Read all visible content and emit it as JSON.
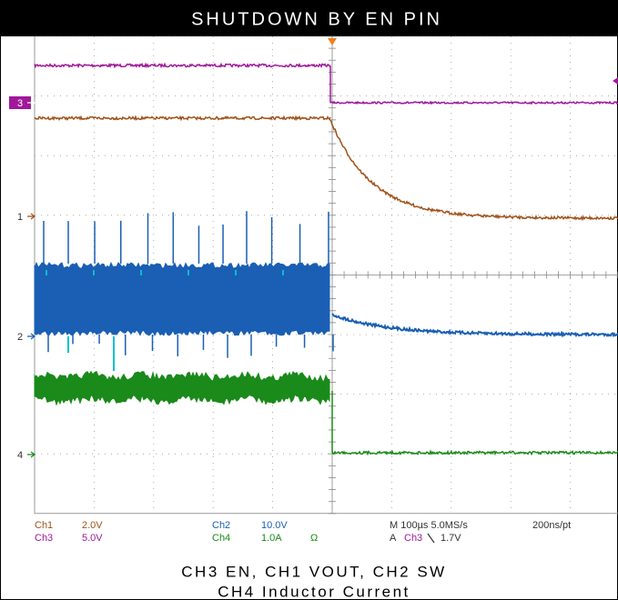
{
  "title": "SHUTDOWN BY EN PIN",
  "channel_markers": [
    "3",
    "1",
    "2",
    "4"
  ],
  "readout": {
    "ch1": {
      "name": "Ch1",
      "scale": "2.0V"
    },
    "ch3": {
      "name": "Ch3",
      "scale": "5.0V"
    },
    "ch2": {
      "name": "Ch2",
      "scale": "10.0V"
    },
    "ch4": {
      "name": "Ch4",
      "scale": "1.0A",
      "impedance": "Ω"
    },
    "timebase": "M 100µs 5.0MS/s",
    "record": "200ns/pt",
    "trigger": {
      "label": "A",
      "source": "Ch3",
      "level": "1.7V"
    }
  },
  "caption": [
    "CH3 EN, CH1 VOUT, CH2 SW",
    "CH4 Inductor Current"
  ]
}
